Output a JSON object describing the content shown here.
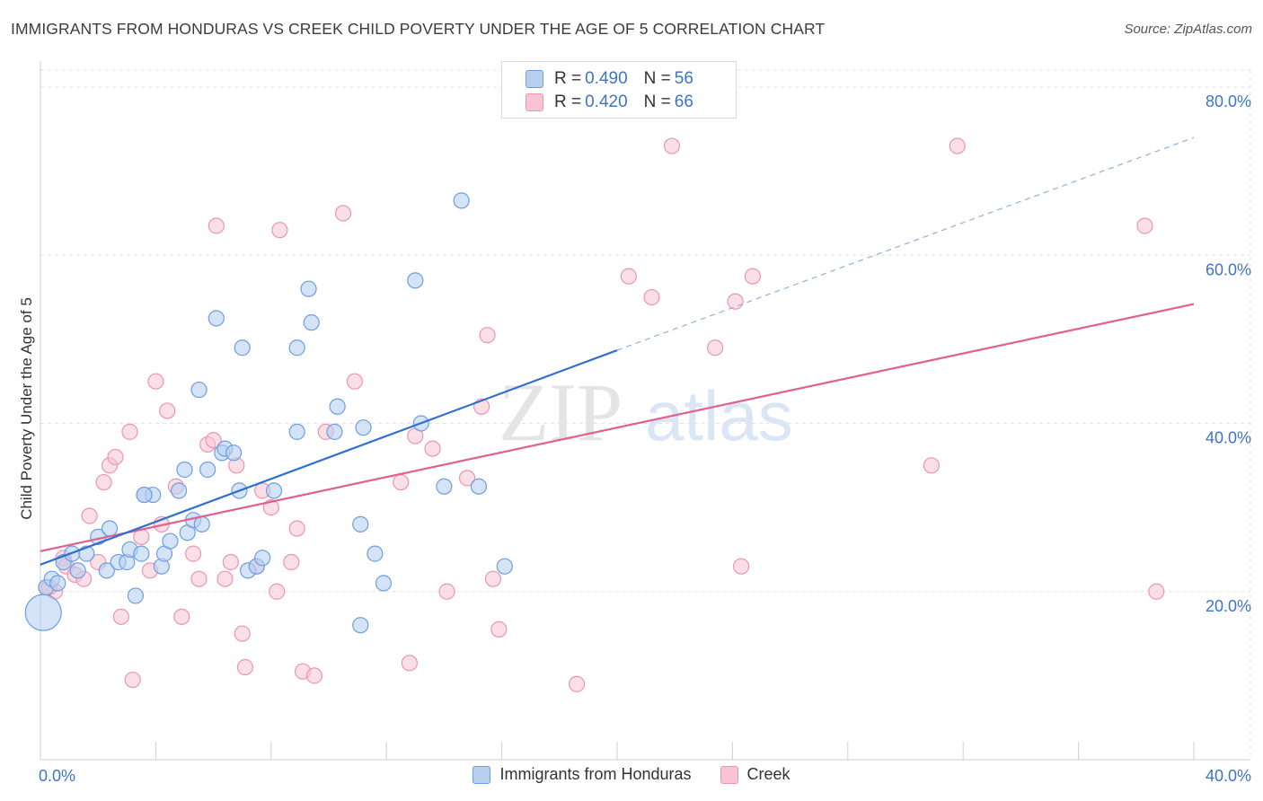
{
  "header": {
    "title": "IMMIGRANTS FROM HONDURAS VS CREEK CHILD POVERTY UNDER THE AGE OF 5 CORRELATION CHART",
    "source": "Source: ZipAtlas.com"
  },
  "watermark": {
    "zip": "ZIP",
    "atlas": "atlas"
  },
  "legend": {
    "r_label": "R =",
    "n_label": "N =",
    "rows": [
      {
        "r": "0.490",
        "n": "56"
      },
      {
        "r": "0.420",
        "n": "66"
      }
    ]
  },
  "colors": {
    "blue_fill": "#b8d0f0",
    "blue_stroke": "#6e9ee0",
    "blue_line": "#2f6fd0",
    "pink_fill": "#f8c4d4",
    "pink_stroke": "#ee94b2",
    "pink_line": "#e06090",
    "tick_label": "#3e74c8"
  },
  "chart_data": {
    "type": "scatter",
    "xlabel": "",
    "ylabel": "Child Poverty Under the Age of 5",
    "xlim": [
      0,
      40
    ],
    "ylim": [
      0,
      82
    ],
    "x_tick_labels": [
      "0.0%",
      "40.0%"
    ],
    "y_ticks": [
      20,
      40,
      60,
      80
    ],
    "y_tick_labels": [
      "20.0%",
      "40.0%",
      "60.0%",
      "80.0%"
    ],
    "grid": true,
    "legend_position": "top-center",
    "series": [
      {
        "name": "Immigrants from Honduras",
        "r": 0.49,
        "n": 56,
        "trend": {
          "x0": 0,
          "y0": 23.2,
          "x1": 20,
          "y1": 48.7,
          "dash_to_x": 40,
          "dash_to_y": 74.0
        },
        "points": [
          [
            0.1,
            17.5
          ],
          [
            0.2,
            20.5
          ],
          [
            0.4,
            21.5
          ],
          [
            0.6,
            21.0
          ],
          [
            0.8,
            23.5
          ],
          [
            1.1,
            24.5
          ],
          [
            1.3,
            22.5
          ],
          [
            1.6,
            24.5
          ],
          [
            2.0,
            26.5
          ],
          [
            2.3,
            22.5
          ],
          [
            2.4,
            27.5
          ],
          [
            2.7,
            23.5
          ],
          [
            3.0,
            23.5
          ],
          [
            3.1,
            25.0
          ],
          [
            3.3,
            19.5
          ],
          [
            3.5,
            24.5
          ],
          [
            3.6,
            31.5
          ],
          [
            3.9,
            31.5
          ],
          [
            4.2,
            23.0
          ],
          [
            4.3,
            24.5
          ],
          [
            4.5,
            26.0
          ],
          [
            4.8,
            32.0
          ],
          [
            5.0,
            34.5
          ],
          [
            5.1,
            27.0
          ],
          [
            5.3,
            28.5
          ],
          [
            5.6,
            28.0
          ],
          [
            5.5,
            44.0
          ],
          [
            5.8,
            34.5
          ],
          [
            6.1,
            52.5
          ],
          [
            6.3,
            36.5
          ],
          [
            6.4,
            37.0
          ],
          [
            6.7,
            36.5
          ],
          [
            6.9,
            32.0
          ],
          [
            7.0,
            49.0
          ],
          [
            7.2,
            22.5
          ],
          [
            7.5,
            23.0
          ],
          [
            7.7,
            24.0
          ],
          [
            8.1,
            32.0
          ],
          [
            8.9,
            39.0
          ],
          [
            8.9,
            49.0
          ],
          [
            9.3,
            56.0
          ],
          [
            9.4,
            52.0
          ],
          [
            10.2,
            39.0
          ],
          [
            10.3,
            42.0
          ],
          [
            11.2,
            39.5
          ],
          [
            11.1,
            28.0
          ],
          [
            11.6,
            24.5
          ],
          [
            11.9,
            21.0
          ],
          [
            11.1,
            16.0
          ],
          [
            13.0,
            57.0
          ],
          [
            13.2,
            40.0
          ],
          [
            14.0,
            32.5
          ],
          [
            14.6,
            66.5
          ],
          [
            15.2,
            32.5
          ],
          [
            16.1,
            23.0
          ],
          [
            3.6,
            31.5
          ]
        ],
        "sizes_note": "one large bubble at x 0.1",
        "big_point_index": 0
      },
      {
        "name": "Creek",
        "r": 0.42,
        "n": 66,
        "trend": {
          "x0": 0,
          "y0": 24.8,
          "x1": 40,
          "y1": 54.2
        },
        "points": [
          [
            0.2,
            20.5
          ],
          [
            0.5,
            20.0
          ],
          [
            0.8,
            24.0
          ],
          [
            0.9,
            23.0
          ],
          [
            1.2,
            22.0
          ],
          [
            1.5,
            21.5
          ],
          [
            1.7,
            29.0
          ],
          [
            2.0,
            23.5
          ],
          [
            2.2,
            33.0
          ],
          [
            2.4,
            35.0
          ],
          [
            2.6,
            36.0
          ],
          [
            2.8,
            17.0
          ],
          [
            3.1,
            39.0
          ],
          [
            3.2,
            9.5
          ],
          [
            3.5,
            26.5
          ],
          [
            3.8,
            22.5
          ],
          [
            4.0,
            45.0
          ],
          [
            4.2,
            28.0
          ],
          [
            4.4,
            41.5
          ],
          [
            4.7,
            32.5
          ],
          [
            4.9,
            17.0
          ],
          [
            5.3,
            24.5
          ],
          [
            5.5,
            21.5
          ],
          [
            5.8,
            37.5
          ],
          [
            6.0,
            38.0
          ],
          [
            6.1,
            63.5
          ],
          [
            6.4,
            21.5
          ],
          [
            6.6,
            23.5
          ],
          [
            6.8,
            35.0
          ],
          [
            7.0,
            15.0
          ],
          [
            7.1,
            11.0
          ],
          [
            7.5,
            23.0
          ],
          [
            7.7,
            32.0
          ],
          [
            8.0,
            30.0
          ],
          [
            8.2,
            20.0
          ],
          [
            8.3,
            63.0
          ],
          [
            8.7,
            23.5
          ],
          [
            8.9,
            27.5
          ],
          [
            9.1,
            10.5
          ],
          [
            9.5,
            10.0
          ],
          [
            9.9,
            39.0
          ],
          [
            10.5,
            65.0
          ],
          [
            10.9,
            45.0
          ],
          [
            12.5,
            33.0
          ],
          [
            12.8,
            11.5
          ],
          [
            13.0,
            38.5
          ],
          [
            13.6,
            37.0
          ],
          [
            14.1,
            20.0
          ],
          [
            14.8,
            33.5
          ],
          [
            15.3,
            42.0
          ],
          [
            15.5,
            50.5
          ],
          [
            15.7,
            21.5
          ],
          [
            15.9,
            15.5
          ],
          [
            18.6,
            9.0
          ],
          [
            20.4,
            57.5
          ],
          [
            21.2,
            55.0
          ],
          [
            21.9,
            73.0
          ],
          [
            23.4,
            49.0
          ],
          [
            24.1,
            54.5
          ],
          [
            24.3,
            23.0
          ],
          [
            24.7,
            57.5
          ],
          [
            30.9,
            35.0
          ],
          [
            31.8,
            73.0
          ],
          [
            38.3,
            63.5
          ],
          [
            38.7,
            20.0
          ],
          [
            0.3,
            20.5
          ]
        ]
      }
    ]
  }
}
